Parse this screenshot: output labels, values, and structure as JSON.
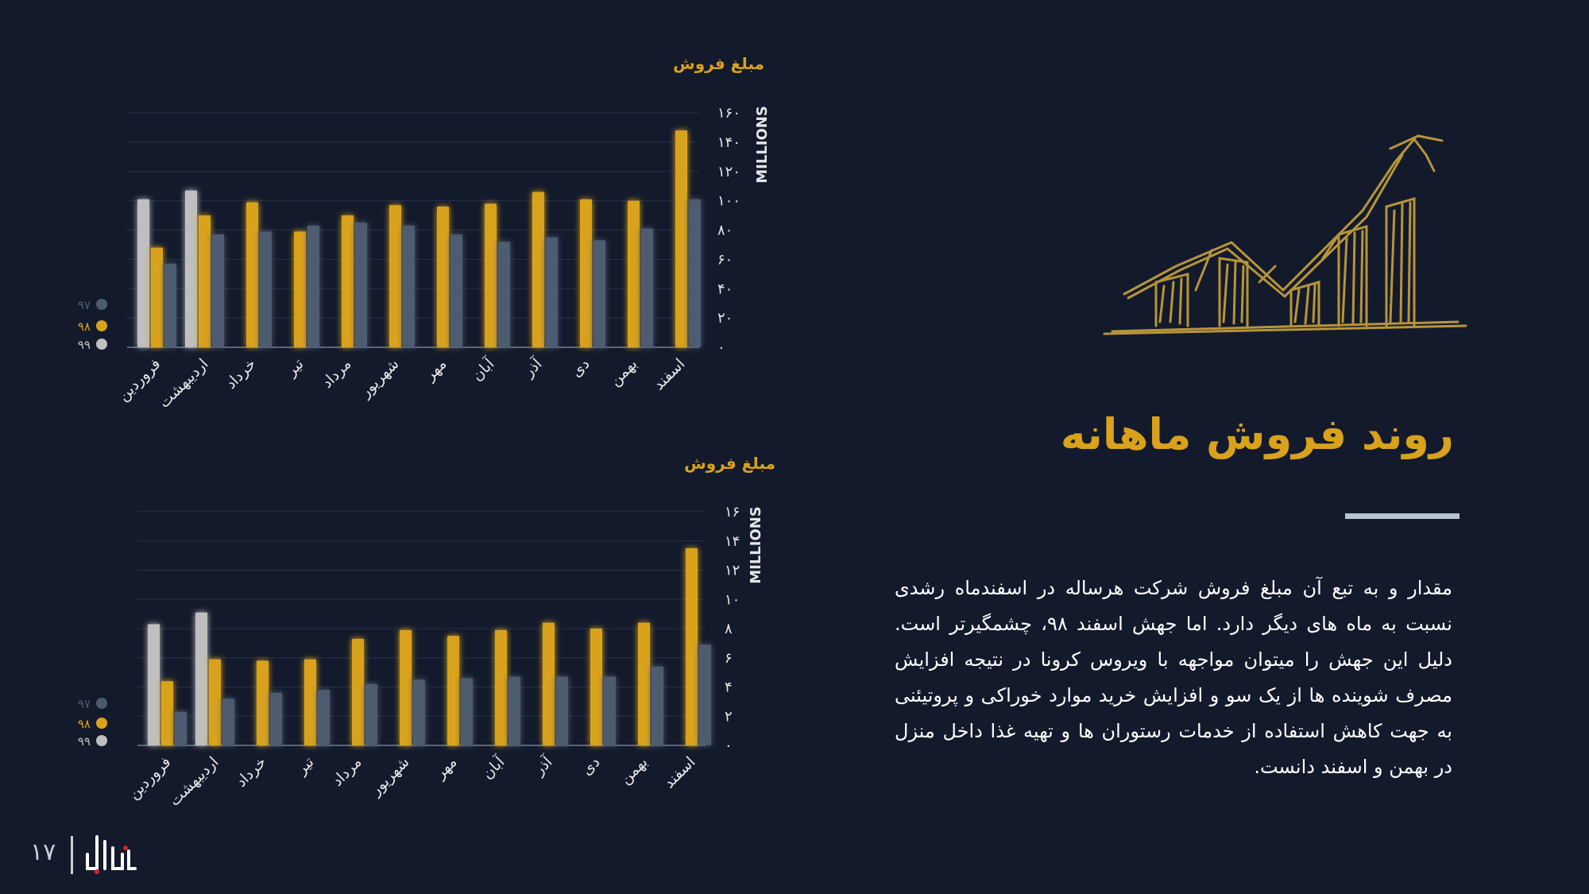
{
  "slide": {
    "title": "روند فروش ماهانه",
    "paragraph": "مقدار و به تبع آن مبلغ فروش شرکت هرساله در اسفندماه رشدی نسبت به ماه های دیگر دارد. اما جهش اسفند ۹۸، چشمگیرتر است. دلیل این جهش را میتوان مواجهه با ویروس کرونا در نتیجه افزایش مصرف شوینده ها از یک سو و افزایش خرید موارد خوراکی و پروتیئنی به جهت کاهش استفاده از خدمات رستوران ها و تهیه غذا داخل منزل در بهمن و اسفند دانست.",
    "page_number": "۱۷",
    "logo_icon": "brand-logo-icon",
    "hero_icon": "sketched-rising-bar-chart-icon"
  },
  "colors": {
    "background": "#131a2c",
    "accent": "#d9a21b",
    "series_97": "#4d5b70",
    "series_98": "#d9a21b",
    "series_99": "#bfbfbf"
  },
  "chart_data": [
    {
      "type": "bar",
      "title": "مبلغ فروش",
      "ylabel": "MILLIONS",
      "ylim": [
        0,
        160
      ],
      "yticks": [
        "۰",
        "۲۰",
        "۴۰",
        "۶۰",
        "۸۰",
        "۱۰۰",
        "۱۲۰",
        "۱۴۰",
        "۱۶۰"
      ],
      "grid": true,
      "legend_position": "bottom-left",
      "categories": [
        "فروردین",
        "اردیبهشت",
        "خرداد",
        "تیر",
        "مرداد",
        "شهریور",
        "مهر",
        "آبان",
        "آذر",
        "دی",
        "بهمن",
        "اسفند"
      ],
      "series": [
        {
          "name": "۹۹",
          "color": "#bfbfbf",
          "values": [
            101,
            107,
            null,
            null,
            null,
            null,
            null,
            null,
            null,
            null,
            null,
            null
          ]
        },
        {
          "name": "۹۸",
          "color": "#d9a21b",
          "values": [
            68,
            90,
            99,
            79,
            90,
            97,
            96,
            98,
            106,
            101,
            100,
            148
          ]
        },
        {
          "name": "۹۷",
          "color": "#4d5b70",
          "values": [
            57,
            77,
            79,
            83,
            85,
            83,
            77,
            72,
            75,
            73,
            81,
            101
          ]
        }
      ]
    },
    {
      "type": "bar",
      "title": "مبلغ فروش",
      "ylabel": "MILLIONS",
      "ylim": [
        0,
        16
      ],
      "yticks": [
        "۰",
        "۲",
        "۴",
        "۶",
        "۸",
        "۱۰",
        "۱۲",
        "۱۴",
        "۱۶"
      ],
      "grid": true,
      "legend_position": "bottom-left",
      "categories": [
        "فروردین",
        "اردیبهشت",
        "خرداد",
        "تیر",
        "مرداد",
        "شهریور",
        "مهر",
        "آبان",
        "آذر",
        "دی",
        "بهمن",
        "اسفند"
      ],
      "series": [
        {
          "name": "۹۹",
          "color": "#bfbfbf",
          "values": [
            8.3,
            9.1,
            null,
            null,
            null,
            null,
            null,
            null,
            null,
            null,
            null,
            null
          ]
        },
        {
          "name": "۹۸",
          "color": "#d9a21b",
          "values": [
            4.4,
            5.9,
            5.8,
            5.9,
            7.3,
            7.9,
            7.5,
            7.9,
            8.4,
            8,
            8.4,
            13.5
          ]
        },
        {
          "name": "۹۷",
          "color": "#4d5b70",
          "values": [
            2.3,
            3.2,
            3.6,
            3.8,
            4.2,
            4.5,
            4.6,
            4.7,
            4.7,
            4.7,
            5.4,
            6.9
          ]
        }
      ]
    }
  ]
}
